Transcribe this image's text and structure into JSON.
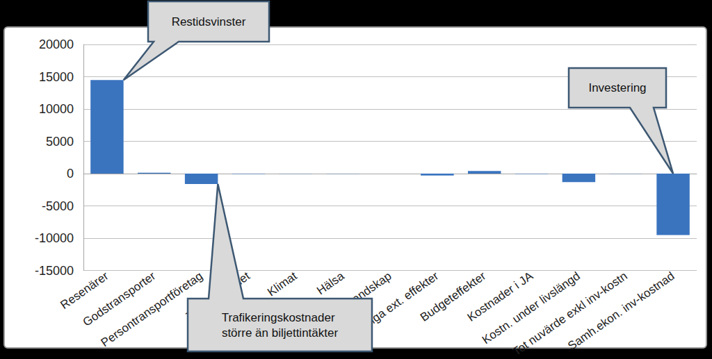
{
  "chart_data": {
    "type": "bar",
    "categories": [
      "Resenärer",
      "Godstransporter",
      "Persontransportföretag",
      "Trafiksäkerhet",
      "Klimat",
      "Hälsa",
      "Landskap",
      "Övriga ext. effekter",
      "Budgeteffekter",
      "Kostnader i JA",
      "Kostn. under livslängd",
      "Tot nuvärde exkl inv-kostn",
      "Samh.ekon. inv-kostnad"
    ],
    "values": [
      14500,
      150,
      -1600,
      -50,
      -30,
      -20,
      0,
      -300,
      400,
      -50,
      -1300,
      -30,
      -9500
    ],
    "color": "#3a74bf",
    "ylim": [
      -15000,
      20000
    ],
    "yticks": [
      -15000,
      -10000,
      -5000,
      0,
      5000,
      10000,
      15000,
      20000
    ],
    "grid": true,
    "annotations": [
      {
        "text": "Restidsvinster",
        "category": "Resenärer"
      },
      {
        "text": "Trafikeringskostnader större än biljettintäkter",
        "category": "Persontransportföretag"
      },
      {
        "text": "Investering",
        "category": "Samh.ekon. inv-kostnad"
      }
    ]
  }
}
